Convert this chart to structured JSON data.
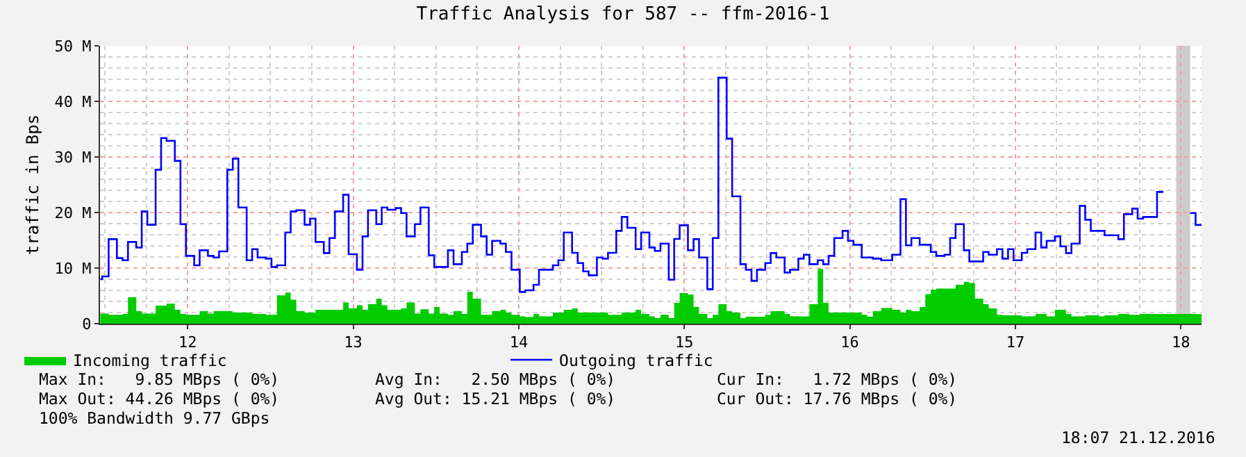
{
  "chart_data": {
    "type": "step",
    "title": "Traffic Analysis for 587 -- ffm-2016-1",
    "ylabel": "traffic in Bps",
    "xlim": [
      11.47,
      18.125
    ],
    "xticks": [
      12,
      13,
      14,
      15,
      16,
      17,
      18
    ],
    "ylim": [
      0,
      50
    ],
    "yticks": [
      0,
      {
        "value": 10,
        "label": "10 M"
      },
      {
        "value": 20,
        "label": "20 M"
      },
      {
        "value": 30,
        "label": "30 M"
      },
      {
        "value": 40,
        "label": "40 M"
      },
      {
        "value": 50,
        "label": "50 M"
      }
    ],
    "grid": true,
    "legend": "bottom",
    "bands": [
      {
        "axis": "x",
        "from": 17.972,
        "to": 18.056,
        "color": "#cccccc"
      }
    ],
    "series": [
      {
        "name": "Incoming traffic",
        "type": "area",
        "color": "#00cc00",
        "x": [
          11.472,
          11.522,
          11.606,
          11.639,
          11.689,
          11.722,
          11.806,
          11.872,
          11.922,
          11.956,
          11.989,
          12.072,
          12.122,
          12.156,
          12.272,
          12.389,
          12.472,
          12.539,
          12.589,
          12.622,
          12.656,
          12.706,
          12.772,
          12.856,
          12.939,
          12.972,
          13.022,
          13.056,
          13.089,
          13.139,
          13.172,
          13.206,
          13.289,
          13.322,
          13.372,
          13.406,
          13.456,
          13.489,
          13.522,
          13.572,
          13.606,
          13.656,
          13.689,
          13.722,
          13.772,
          13.839,
          13.889,
          13.922,
          13.956,
          14.006,
          14.039,
          14.089,
          14.122,
          14.206,
          14.272,
          14.322,
          14.356,
          14.422,
          14.539,
          14.622,
          14.706,
          14.739,
          14.789,
          14.822,
          14.856,
          14.906,
          14.939,
          14.972,
          15.022,
          15.056,
          15.089,
          15.139,
          15.172,
          15.206,
          15.256,
          15.289,
          15.339,
          15.372,
          15.489,
          15.522,
          15.606,
          15.639,
          15.756,
          15.806,
          15.839,
          15.872,
          15.989,
          16.022,
          16.072,
          16.106,
          16.139,
          16.189,
          16.256,
          16.306,
          16.339,
          16.372,
          16.422,
          16.456,
          16.489,
          16.522,
          16.606,
          16.639,
          16.689,
          16.722,
          16.756,
          16.806,
          16.839,
          16.889,
          16.922,
          17.039,
          17.122,
          17.189,
          17.239,
          17.306,
          17.339,
          17.422,
          17.506,
          17.539,
          17.622,
          17.689,
          17.756,
          17.856,
          17.972,
          18.056,
          18.089,
          18.125
        ],
        "values": [
          1.8,
          1.6,
          1.75,
          4.75,
          2.25,
          1.8,
          3.25,
          3.6,
          2.5,
          1.75,
          1.6,
          2.25,
          1.8,
          2.25,
          2.0,
          1.75,
          1.6,
          5.1,
          5.6,
          4.3,
          2.25,
          2.0,
          2.5,
          2.5,
          3.8,
          2.75,
          3.3,
          2.5,
          3.5,
          4.5,
          3.3,
          2.5,
          2.75,
          3.8,
          1.8,
          2.6,
          1.8,
          3.0,
          1.8,
          1.6,
          2.25,
          1.75,
          5.75,
          4.5,
          1.6,
          2.25,
          2.5,
          2.0,
          1.6,
          1.3,
          1.2,
          1.75,
          1.3,
          2.0,
          2.5,
          2.75,
          2.0,
          2.0,
          1.6,
          2.0,
          2.5,
          1.75,
          1.3,
          1.0,
          1.6,
          1.0,
          3.75,
          5.5,
          5.25,
          3.0,
          1.75,
          1.0,
          1.6,
          3.5,
          2.25,
          2.0,
          1.0,
          1.25,
          1.6,
          2.25,
          1.75,
          1.3,
          3.5,
          9.85,
          3.75,
          2.0,
          2.0,
          2.0,
          1.6,
          1.25,
          2.25,
          2.8,
          2.5,
          2.0,
          2.5,
          2.25,
          3.0,
          5.3,
          6.1,
          6.3,
          6.3,
          7.0,
          7.5,
          7.3,
          4.5,
          3.5,
          2.75,
          1.6,
          1.5,
          1.3,
          1.75,
          1.3,
          2.5,
          1.75,
          1.3,
          1.5,
          1.3,
          1.5,
          1.75,
          1.6,
          1.75,
          1.75,
          null,
          1.75,
          1.72,
          1.72
        ]
      },
      {
        "name": "Outgoing traffic",
        "type": "step",
        "color": "#0000ff",
        "x": [
          11.472,
          11.483,
          11.522,
          11.572,
          11.606,
          11.639,
          11.689,
          11.722,
          11.756,
          11.806,
          11.839,
          11.872,
          11.922,
          11.956,
          11.989,
          12.039,
          12.072,
          12.122,
          12.156,
          12.189,
          12.239,
          12.272,
          12.306,
          12.356,
          12.389,
          12.422,
          12.472,
          12.506,
          12.539,
          12.589,
          12.622,
          12.656,
          12.706,
          12.739,
          12.772,
          12.822,
          12.856,
          12.889,
          12.939,
          12.972,
          13.022,
          13.056,
          13.089,
          13.139,
          13.172,
          13.206,
          13.256,
          13.289,
          13.322,
          13.372,
          13.406,
          13.456,
          13.489,
          13.572,
          13.606,
          13.656,
          13.689,
          13.722,
          13.772,
          13.806,
          13.839,
          13.889,
          13.922,
          13.956,
          14.006,
          14.039,
          14.089,
          14.122,
          14.206,
          14.239,
          14.272,
          14.322,
          14.356,
          14.389,
          14.422,
          14.472,
          14.506,
          14.539,
          14.589,
          14.622,
          14.656,
          14.706,
          14.739,
          14.789,
          14.822,
          14.856,
          14.906,
          14.939,
          14.972,
          15.022,
          15.056,
          15.089,
          15.139,
          15.172,
          15.206,
          15.256,
          15.289,
          15.339,
          15.372,
          15.406,
          15.439,
          15.489,
          15.522,
          15.556,
          15.606,
          15.639,
          15.689,
          15.722,
          15.756,
          15.806,
          15.839,
          15.872,
          15.906,
          15.956,
          15.989,
          16.022,
          16.072,
          16.139,
          16.189,
          16.256,
          16.306,
          16.339,
          16.372,
          16.422,
          16.489,
          16.522,
          16.572,
          16.606,
          16.639,
          16.689,
          16.722,
          16.806,
          16.839,
          16.889,
          16.922,
          16.956,
          16.989,
          17.039,
          17.072,
          17.122,
          17.156,
          17.189,
          17.239,
          17.272,
          17.306,
          17.339,
          17.389,
          17.422,
          17.456,
          17.539,
          17.622,
          17.656,
          17.706,
          17.739,
          17.772,
          17.856,
          17.889,
          17.972,
          18.056,
          18.089,
          18.125
        ],
        "values": [
          8.0,
          8.5,
          15.2,
          11.8,
          11.4,
          14.7,
          13.7,
          20.2,
          17.8,
          27.7,
          33.4,
          32.9,
          29.3,
          17.9,
          12.2,
          10.5,
          13.2,
          12.2,
          11.9,
          13.0,
          27.7,
          29.7,
          20.9,
          11.4,
          13.4,
          11.9,
          11.7,
          10.2,
          10.5,
          16.4,
          20.2,
          20.4,
          17.8,
          18.9,
          14.7,
          12.7,
          15.4,
          20.2,
          23.2,
          12.5,
          9.7,
          15.7,
          20.4,
          17.9,
          20.9,
          20.5,
          20.8,
          19.9,
          15.7,
          17.9,
          20.9,
          12.3,
          10.2,
          13.2,
          10.7,
          12.9,
          14.4,
          17.8,
          15.7,
          12.4,
          14.9,
          14.4,
          12.9,
          9.7,
          5.7,
          6.0,
          7.0,
          9.7,
          10.5,
          11.4,
          16.4,
          12.75,
          10.9,
          9.4,
          8.7,
          11.9,
          11.7,
          12.75,
          16.7,
          19.2,
          17.25,
          13.4,
          16.4,
          13.7,
          13.1,
          14.4,
          7.9,
          15.25,
          17.7,
          13.2,
          15.2,
          11.9,
          6.2,
          15.4,
          44.26,
          33.3,
          22.9,
          10.7,
          9.7,
          7.7,
          9.7,
          10.9,
          12.7,
          11.9,
          9.2,
          9.7,
          11.7,
          12.4,
          10.7,
          11.4,
          10.7,
          12.2,
          15.4,
          16.7,
          14.9,
          14.2,
          11.9,
          11.7,
          11.4,
          12.4,
          22.4,
          14.1,
          15.4,
          14.2,
          12.9,
          12.2,
          12.4,
          15.4,
          17.9,
          13.2,
          11.2,
          12.9,
          12.4,
          13.4,
          11.7,
          13.4,
          11.4,
          12.75,
          13.4,
          16.4,
          13.7,
          14.9,
          15.7,
          13.9,
          12.7,
          14.4,
          21.2,
          18.7,
          16.7,
          15.9,
          15.2,
          19.7,
          20.7,
          18.9,
          19.2,
          23.7,
          23.9,
          null,
          19.9,
          17.76,
          17.76
        ]
      }
    ],
    "annotations": [
      "Max In:   9.85 MBps ( 0%)",
      "Avg In:   2.50 MBps ( 0%)",
      "Cur In:   1.72 MBps ( 0%)",
      "Max Out: 44.26 MBps ( 0%)",
      "Avg Out: 15.21 MBps ( 0%)",
      "Cur Out: 17.76 MBps ( 0%)",
      "100% Bandwidth 9.77 GBps",
      "18:07 21.12.2016"
    ]
  }
}
